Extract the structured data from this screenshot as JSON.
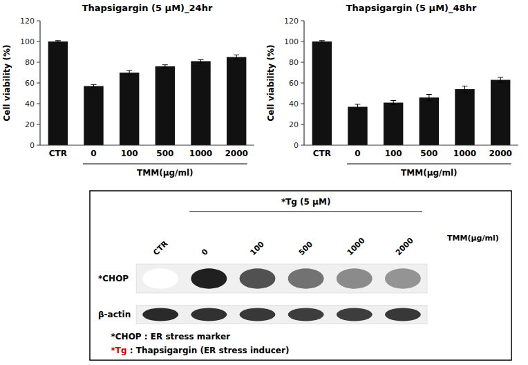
{
  "chart_data": [
    {
      "type": "bar",
      "title": "Thapsigargin (5 μM)_24hr",
      "categories": [
        "CTR",
        "0",
        "100",
        "500",
        "1000",
        "2000"
      ],
      "values": [
        100,
        57,
        70,
        76,
        81,
        85
      ],
      "errors": [
        0.8,
        1.5,
        2.0,
        1.5,
        1.5,
        2.0
      ],
      "color": "#111111",
      "xlabel": "TMM(μg/ml)",
      "ylabel": "Cell viability (%)",
      "ylim": [
        0,
        120
      ],
      "yticks": [
        0,
        20,
        40,
        60,
        80,
        100,
        120
      ]
    },
    {
      "type": "bar",
      "title": "Thapsigargin (5 μM)_48hr",
      "categories": [
        "CTR",
        "0",
        "100",
        "500",
        "1000",
        "2000"
      ],
      "values": [
        100,
        37,
        41,
        46,
        54,
        63
      ],
      "errors": [
        0.8,
        2.5,
        2.0,
        3.0,
        3.0,
        2.5
      ],
      "color": "#111111",
      "xlabel": "TMM(μg/ml)",
      "ylabel": "Cell viability (%)",
      "ylim": [
        0,
        120
      ],
      "yticks": [
        0,
        20,
        40,
        60,
        80,
        100,
        120
      ]
    },
    {
      "type": "heatmap",
      "title": "*Tg (5 μM)",
      "categories": [
        "CTR",
        "0",
        "100",
        "500",
        "1000",
        "2000"
      ],
      "xlabel": "TMM(μg/ml)",
      "rows": [
        "*CHOP",
        "β-actin"
      ],
      "values": [
        [
          0.0,
          0.92,
          0.72,
          0.58,
          0.48,
          0.44
        ],
        [
          0.88,
          0.85,
          0.82,
          0.8,
          0.8,
          0.82
        ]
      ],
      "annotations": [
        [
          {
            "text": "*CHOP : ER stress marker"
          }
        ],
        [
          {
            "text": "*Tg",
            "color": "#cc0000"
          },
          {
            "text": " : Thapsigargin (ER stress inducer)"
          }
        ]
      ]
    }
  ]
}
